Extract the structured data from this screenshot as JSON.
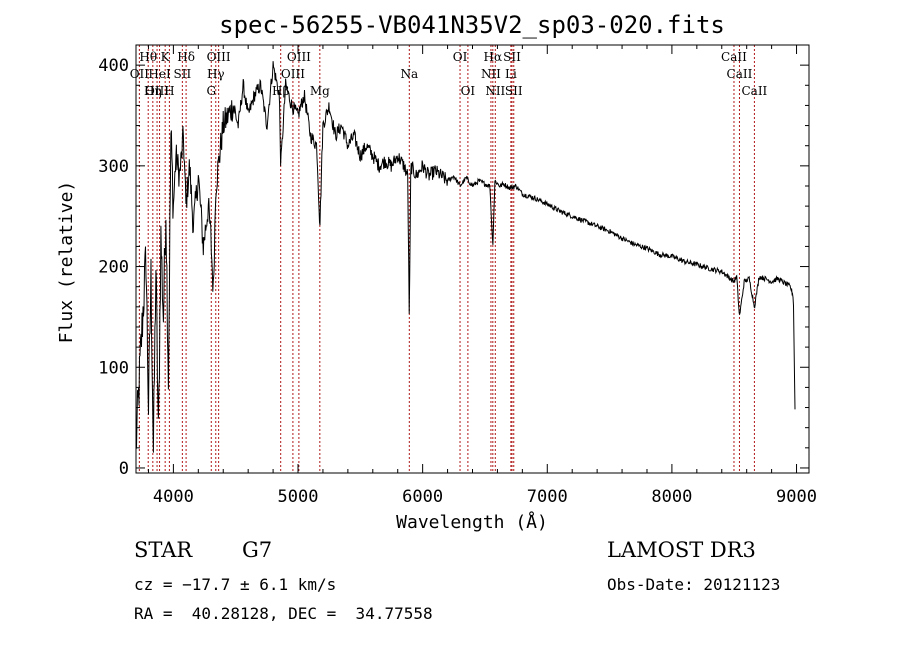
{
  "chart_data": {
    "type": "line",
    "title": "spec-56255-VB041N35V2_sp03-020.fits",
    "xlabel": "Wavelength (Å)",
    "ylabel": "Flux (relative)",
    "xlim": [
      3700,
      9100
    ],
    "ylim": [
      -5,
      420
    ],
    "xticks": [
      4000,
      5000,
      6000,
      7000,
      8000,
      9000
    ],
    "yticks": [
      0,
      100,
      200,
      300,
      400
    ],
    "grid": false,
    "series": [
      {
        "name": "spectrum",
        "color": "#000000",
        "x": [
          3700,
          3740,
          3780,
          3800,
          3820,
          3840,
          3860,
          3880,
          3900,
          3920,
          3940,
          3960,
          3980,
          4000,
          4020,
          4050,
          4080,
          4100,
          4130,
          4160,
          4200,
          4240,
          4280,
          4300,
          4320,
          4340,
          4360,
          4400,
          4440,
          4480,
          4520,
          4560,
          4600,
          4650,
          4700,
          4750,
          4800,
          4850,
          4861,
          4900,
          4950,
          5000,
          5050,
          5100,
          5150,
          5175,
          5200,
          5250,
          5300,
          5350,
          5400,
          5450,
          5500,
          5550,
          5600,
          5650,
          5700,
          5750,
          5800,
          5850,
          5880,
          5893,
          5905,
          5950,
          6000,
          6050,
          6100,
          6150,
          6200,
          6250,
          6300,
          6350,
          6400,
          6450,
          6500,
          6540,
          6563,
          6580,
          6620,
          6650,
          6700,
          6750,
          6800,
          6850,
          6900,
          6950,
          7000,
          7100,
          7200,
          7300,
          7400,
          7500,
          7600,
          7700,
          7800,
          7900,
          8000,
          8100,
          8200,
          8300,
          8400,
          8450,
          8498,
          8520,
          8542,
          8580,
          8620,
          8662,
          8700,
          8750,
          8800,
          8850,
          8900,
          8950,
          8975,
          8990
        ],
        "values": [
          20,
          120,
          210,
          60,
          190,
          15,
          200,
          30,
          230,
          150,
          260,
          90,
          330,
          260,
          310,
          290,
          330,
          260,
          300,
          240,
          290,
          220,
          260,
          230,
          175,
          280,
          300,
          340,
          350,
          360,
          340,
          380,
          350,
          370,
          380,
          340,
          400,
          370,
          300,
          380,
          360,
          350,
          370,
          330,
          320,
          240,
          340,
          360,
          330,
          340,
          320,
          330,
          310,
          320,
          310,
          300,
          305,
          300,
          310,
          300,
          290,
          145,
          300,
          290,
          300,
          290,
          295,
          290,
          285,
          290,
          280,
          288,
          280,
          285,
          282,
          280,
          220,
          285,
          280,
          282,
          278,
          280,
          272,
          270,
          268,
          265,
          262,
          255,
          250,
          245,
          240,
          235,
          228,
          222,
          218,
          212,
          210,
          205,
          202,
          198,
          195,
          190,
          185,
          190,
          150,
          185,
          188,
          160,
          190,
          188,
          185,
          188,
          184,
          180,
          170,
          40
        ]
      }
    ],
    "lines": [
      {
        "name": "H-theta",
        "label": "Hθ",
        "wave": 3798,
        "row": 1
      },
      {
        "name": "K",
        "label": "K",
        "wave": 3934,
        "row": 1
      },
      {
        "name": "H-delta",
        "label": "Hδ",
        "wave": 4102,
        "row": 1
      },
      {
        "name": "OIII-4363",
        "label": "OIII",
        "wave": 4363,
        "row": 1
      },
      {
        "name": "OIII-5007",
        "label": "OIII",
        "wave": 5007,
        "row": 1
      },
      {
        "name": "OI-6300",
        "label": "OI",
        "wave": 6300,
        "row": 1
      },
      {
        "name": "H-alpha",
        "label": "Hα",
        "wave": 6563,
        "row": 1
      },
      {
        "name": "SII-6717",
        "label": "SII",
        "wave": 6717,
        "row": 1
      },
      {
        "name": "CaII-8498",
        "label": "CaII",
        "wave": 8498,
        "row": 1
      },
      {
        "name": "OII",
        "label": "OII",
        "wave": 3727,
        "row": 2
      },
      {
        "name": "HeI",
        "label": "HeI",
        "wave": 3889,
        "row": 2
      },
      {
        "name": "SII-4072",
        "label": "SII",
        "wave": 4072,
        "row": 2
      },
      {
        "name": "H-gamma",
        "label": "Hγ",
        "wave": 4340,
        "row": 2
      },
      {
        "name": "OIII-4959",
        "label": "OIII",
        "wave": 4959,
        "row": 2
      },
      {
        "name": "Na",
        "label": "Na",
        "wave": 5893,
        "row": 2
      },
      {
        "name": "NII-6548",
        "label": "NII",
        "wave": 6548,
        "row": 2
      },
      {
        "name": "Li",
        "label": "Li",
        "wave": 6708,
        "row": 2
      },
      {
        "name": "CaII-8542",
        "label": "CaII",
        "wave": 8542,
        "row": 2
      },
      {
        "name": "OIII-3869",
        "label": "OIII",
        "wave": 3869,
        "row": 3
      },
      {
        "name": "H-eta",
        "label": "Hη",
        "wave": 3835,
        "row": 3
      },
      {
        "name": "H",
        "label": "H",
        "wave": 3968,
        "row": 3
      },
      {
        "name": "G",
        "label": "G",
        "wave": 4304,
        "row": 3
      },
      {
        "name": "H-beta",
        "label": "Hβ",
        "wave": 4861,
        "row": 3
      },
      {
        "name": "Mg",
        "label": "Mg",
        "wave": 5175,
        "row": 3
      },
      {
        "name": "OI-6363",
        "label": "OI",
        "wave": 6363,
        "row": 3
      },
      {
        "name": "NII-6583",
        "label": "NII",
        "wave": 6583,
        "row": 3
      },
      {
        "name": "SII-6731",
        "label": "SII",
        "wave": 6731,
        "row": 3
      },
      {
        "name": "CaII-8662",
        "label": "CaII",
        "wave": 8662,
        "row": 3
      }
    ]
  },
  "info": {
    "class": "STAR",
    "subclass": "G7",
    "survey": "LAMOST DR3",
    "cz": "cz = −17.7 ± 6.1 km/s",
    "obs_date": "Obs-Date: 20121123",
    "coords": "RA =  40.28128, DEC =  34.77558"
  }
}
